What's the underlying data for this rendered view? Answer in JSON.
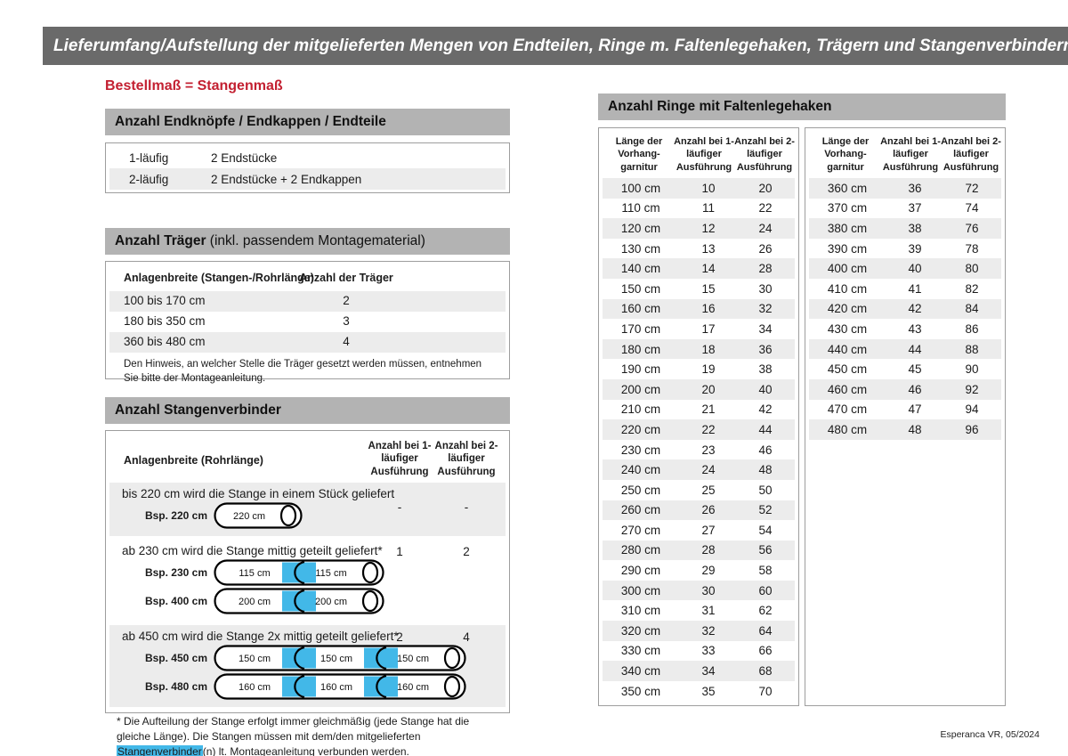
{
  "page": {
    "header": "Lieferumfang/Aufstellung der mitgelieferten Mengen von Endteilen, Ringe m. Faltenlegehaken, Trägern und Stangenverbindern:",
    "subtitle": "Bestellmaß = Stangenmaß",
    "footer": "Esperanca VR, 05/2024"
  },
  "colors": {
    "header_gray": "#6a6a6a",
    "bar_gray": "#b3b3b3",
    "alt_gray": "#ececec",
    "accent_red": "#c32031",
    "connector_blue": "#42b8e8"
  },
  "endteile": {
    "title": "Anzahl Endknöpfe / Endkappen / Endteile",
    "rows": [
      [
        "1-läufig",
        "2 Endstücke"
      ],
      [
        "2-läufig",
        "2 Endstücke + 2 Endkappen"
      ]
    ]
  },
  "traeger": {
    "title_bold": "Anzahl Träger",
    "title_rest": " (inkl. passendem Montagematerial)",
    "col1": "Anlagenbreite (Stangen-/Rohrlänge)",
    "col2": "Anzahl der Träger",
    "rows": [
      [
        "100 bis 170 cm",
        "2"
      ],
      [
        "180 bis 350 cm",
        "3"
      ],
      [
        "360 bis 480 cm",
        "4"
      ]
    ],
    "note": "Den Hinweis, an welcher Stelle die Träger gesetzt werden müssen, entnehmen Sie bitte der Montageanleitung."
  },
  "verbinder": {
    "title": "Anzahl Stangenverbinder",
    "col1": "Anlagenbreite (Rohrlänge)",
    "col2": "Anzahl bei 1-läufiger Ausführung",
    "col3": "Anzahl bei 2-läufiger Ausführung",
    "rows": [
      {
        "text": "bis 220 cm wird die Stange in einem Stück geliefert",
        "val1": "-",
        "val2": "-",
        "val_top": 20,
        "rods": [
          {
            "label": "Bsp. 220 cm",
            "segments": [
              "220 cm"
            ]
          }
        ]
      },
      {
        "text": "ab 230 cm wird die Stange mittig geteilt geliefert*",
        "val1": "1",
        "val2": "2",
        "val_top": 6,
        "rods": [
          {
            "label": "Bsp. 230 cm",
            "segments": [
              "115 cm",
              "115 cm"
            ]
          },
          {
            "label": "Bsp. 400 cm",
            "segments": [
              "200 cm",
              "200 cm"
            ]
          }
        ]
      },
      {
        "text": "ab 450 cm wird die Stange 2x mittig geteilt geliefert*",
        "val1": "2",
        "val2": "4",
        "val_top": 6,
        "rods": [
          {
            "label": "Bsp. 450 cm",
            "segments": [
              "150 cm",
              "150 cm",
              "150 cm"
            ]
          },
          {
            "label": "Bsp. 480 cm",
            "segments": [
              "160 cm",
              "160 cm",
              "160 cm"
            ]
          }
        ]
      }
    ],
    "footnote_pre": "* Die Aufteilung der Stange erfolgt immer gleichmäßig (jede Stange hat die gleiche Länge). Die Stangen müssen mit dem/den mitgelieferten ",
    "footnote_highlight": "Stangenverbinder",
    "footnote_post": "(n) lt. Montageanleitung verbunden werden."
  },
  "ringe": {
    "title": "Anzahl Ringe mit Faltenlegehaken",
    "headers": [
      "Länge der Vorhang-garnitur",
      "Anzahl bei 1-läufiger Ausführung",
      "Anzahl bei 2-läufiger Ausführung"
    ],
    "tables": [
      {
        "rows": [
          [
            "100 cm",
            "10",
            "20"
          ],
          [
            "110 cm",
            "11",
            "22"
          ],
          [
            "120 cm",
            "12",
            "24"
          ],
          [
            "130 cm",
            "13",
            "26"
          ],
          [
            "140 cm",
            "14",
            "28"
          ],
          [
            "150 cm",
            "15",
            "30"
          ],
          [
            "160 cm",
            "16",
            "32"
          ],
          [
            "170 cm",
            "17",
            "34"
          ],
          [
            "180 cm",
            "18",
            "36"
          ],
          [
            "190 cm",
            "19",
            "38"
          ],
          [
            "200 cm",
            "20",
            "40"
          ],
          [
            "210 cm",
            "21",
            "42"
          ],
          [
            "220 cm",
            "22",
            "44"
          ],
          [
            "230 cm",
            "23",
            "46"
          ],
          [
            "240 cm",
            "24",
            "48"
          ],
          [
            "250 cm",
            "25",
            "50"
          ],
          [
            "260 cm",
            "26",
            "52"
          ],
          [
            "270 cm",
            "27",
            "54"
          ],
          [
            "280 cm",
            "28",
            "56"
          ],
          [
            "290 cm",
            "29",
            "58"
          ],
          [
            "300 cm",
            "30",
            "60"
          ],
          [
            "310 cm",
            "31",
            "62"
          ],
          [
            "320 cm",
            "32",
            "64"
          ],
          [
            "330 cm",
            "33",
            "66"
          ],
          [
            "340 cm",
            "34",
            "68"
          ],
          [
            "350 cm",
            "35",
            "70"
          ]
        ]
      },
      {
        "rows": [
          [
            "360 cm",
            "36",
            "72"
          ],
          [
            "370 cm",
            "37",
            "74"
          ],
          [
            "380 cm",
            "38",
            "76"
          ],
          [
            "390 cm",
            "39",
            "78"
          ],
          [
            "400 cm",
            "40",
            "80"
          ],
          [
            "410 cm",
            "41",
            "82"
          ],
          [
            "420 cm",
            "42",
            "84"
          ],
          [
            "430 cm",
            "43",
            "86"
          ],
          [
            "440 cm",
            "44",
            "88"
          ],
          [
            "450 cm",
            "45",
            "90"
          ],
          [
            "460 cm",
            "46",
            "92"
          ],
          [
            "470 cm",
            "47",
            "94"
          ],
          [
            "480 cm",
            "48",
            "96"
          ]
        ]
      }
    ]
  }
}
